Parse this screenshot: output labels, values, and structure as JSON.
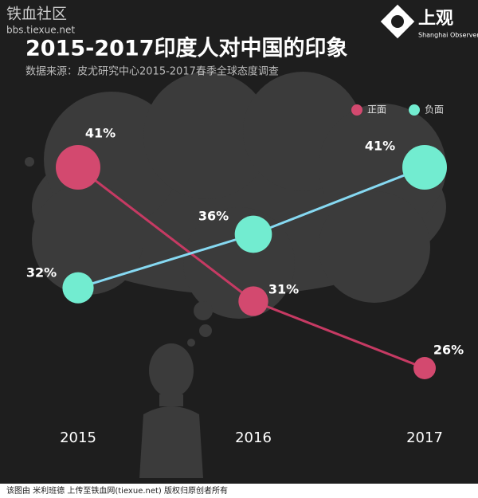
{
  "watermark": {
    "title": "铁血社区",
    "url": "bbs.tiexue.net"
  },
  "logo": {
    "title": "上观",
    "subtitle": "Shanghai Observer"
  },
  "footer": "该图由 米利班德 上传至铁血网(tiexue.net) 版权归原创者所有",
  "chart_data": {
    "type": "bubble-line",
    "title": "2015-2017印度人对中国的印象",
    "subtitle": "数据来源：皮尤研究中心2015-2017春季全球态度调查",
    "categories": [
      "2015",
      "2016",
      "2017"
    ],
    "series": [
      {
        "name": "正面",
        "color": "#d3496f",
        "line_color": "#c63a63",
        "values": [
          41,
          31,
          26
        ],
        "value_labels": [
          "41%",
          "31%",
          "26%"
        ]
      },
      {
        "name": "负面",
        "color": "#72ecd0",
        "line_color": "#86d9f2",
        "values": [
          32,
          36,
          41
        ],
        "value_labels": [
          "32%",
          "36%",
          "41%"
        ]
      }
    ],
    "legend": "top-right"
  }
}
